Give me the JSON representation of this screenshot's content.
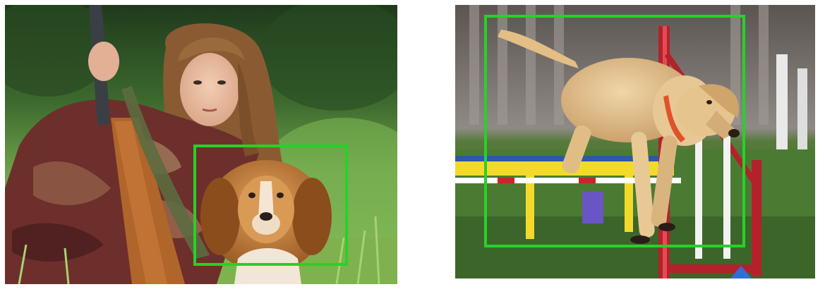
{
  "images": [
    {
      "subject": "girl-with-dog-in-grass",
      "detections": [
        {
          "class_shown": false
        }
      ]
    },
    {
      "subject": "labrador-jumping-agility-hurdle",
      "detections": [
        {
          "class_shown": false
        }
      ]
    }
  ],
  "colors": {
    "bbox": "#27d12a",
    "background": "#ffffff"
  }
}
